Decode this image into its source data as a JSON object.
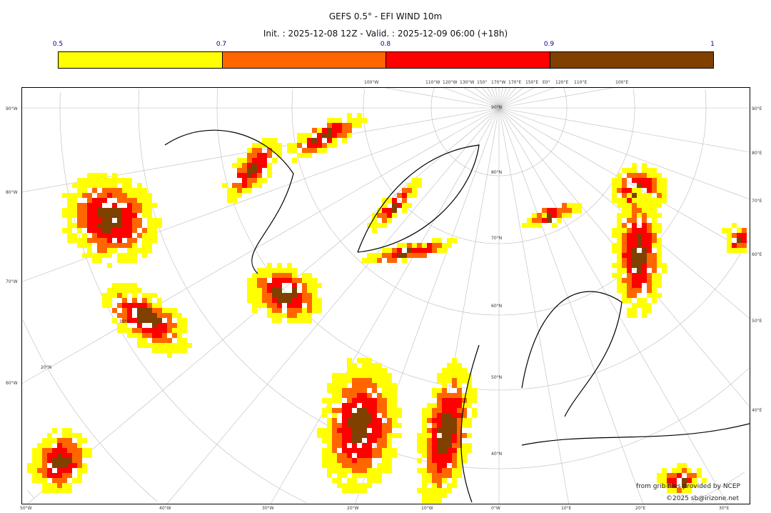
{
  "header": {
    "title": "GEFS 0.5° - EFI WIND 10m",
    "subtitle": "Init. : 2025-12-08 12Z - Valid. : 2025-12-09 06:00 (+18h)"
  },
  "colorbar": {
    "ticks": [
      "0.5",
      "0.7",
      "0.8",
      "0.9",
      "1"
    ],
    "colors": [
      "#ffff00",
      "#ff6600",
      "#ff0000",
      "#804000"
    ]
  },
  "axes": {
    "left": [
      "90°W",
      "80°W",
      "70°W",
      "60°W"
    ],
    "right": [
      "90°E",
      "80°E",
      "70°E",
      "60°E",
      "50°E",
      "40°E"
    ],
    "bottom": [
      "50°W",
      "40°W",
      "30°W",
      "20°W",
      "10°W",
      "0°W",
      "10°E",
      "20°E",
      "30°E"
    ],
    "top": [
      "100°W",
      "110°W",
      "120°W",
      "130°W",
      "150°",
      "170°W",
      "170°E",
      "150°E",
      "E0°",
      "120°E",
      "110°E",
      "100°E"
    ],
    "parallels": [
      "90°N",
      "80°N",
      "70°N",
      "60°N",
      "50°N",
      "40°N",
      "30°N",
      "20°N"
    ]
  },
  "credits": {
    "line1": "from grib files provided by NCEP",
    "line2": "©2025 sb@irizone.net"
  }
}
